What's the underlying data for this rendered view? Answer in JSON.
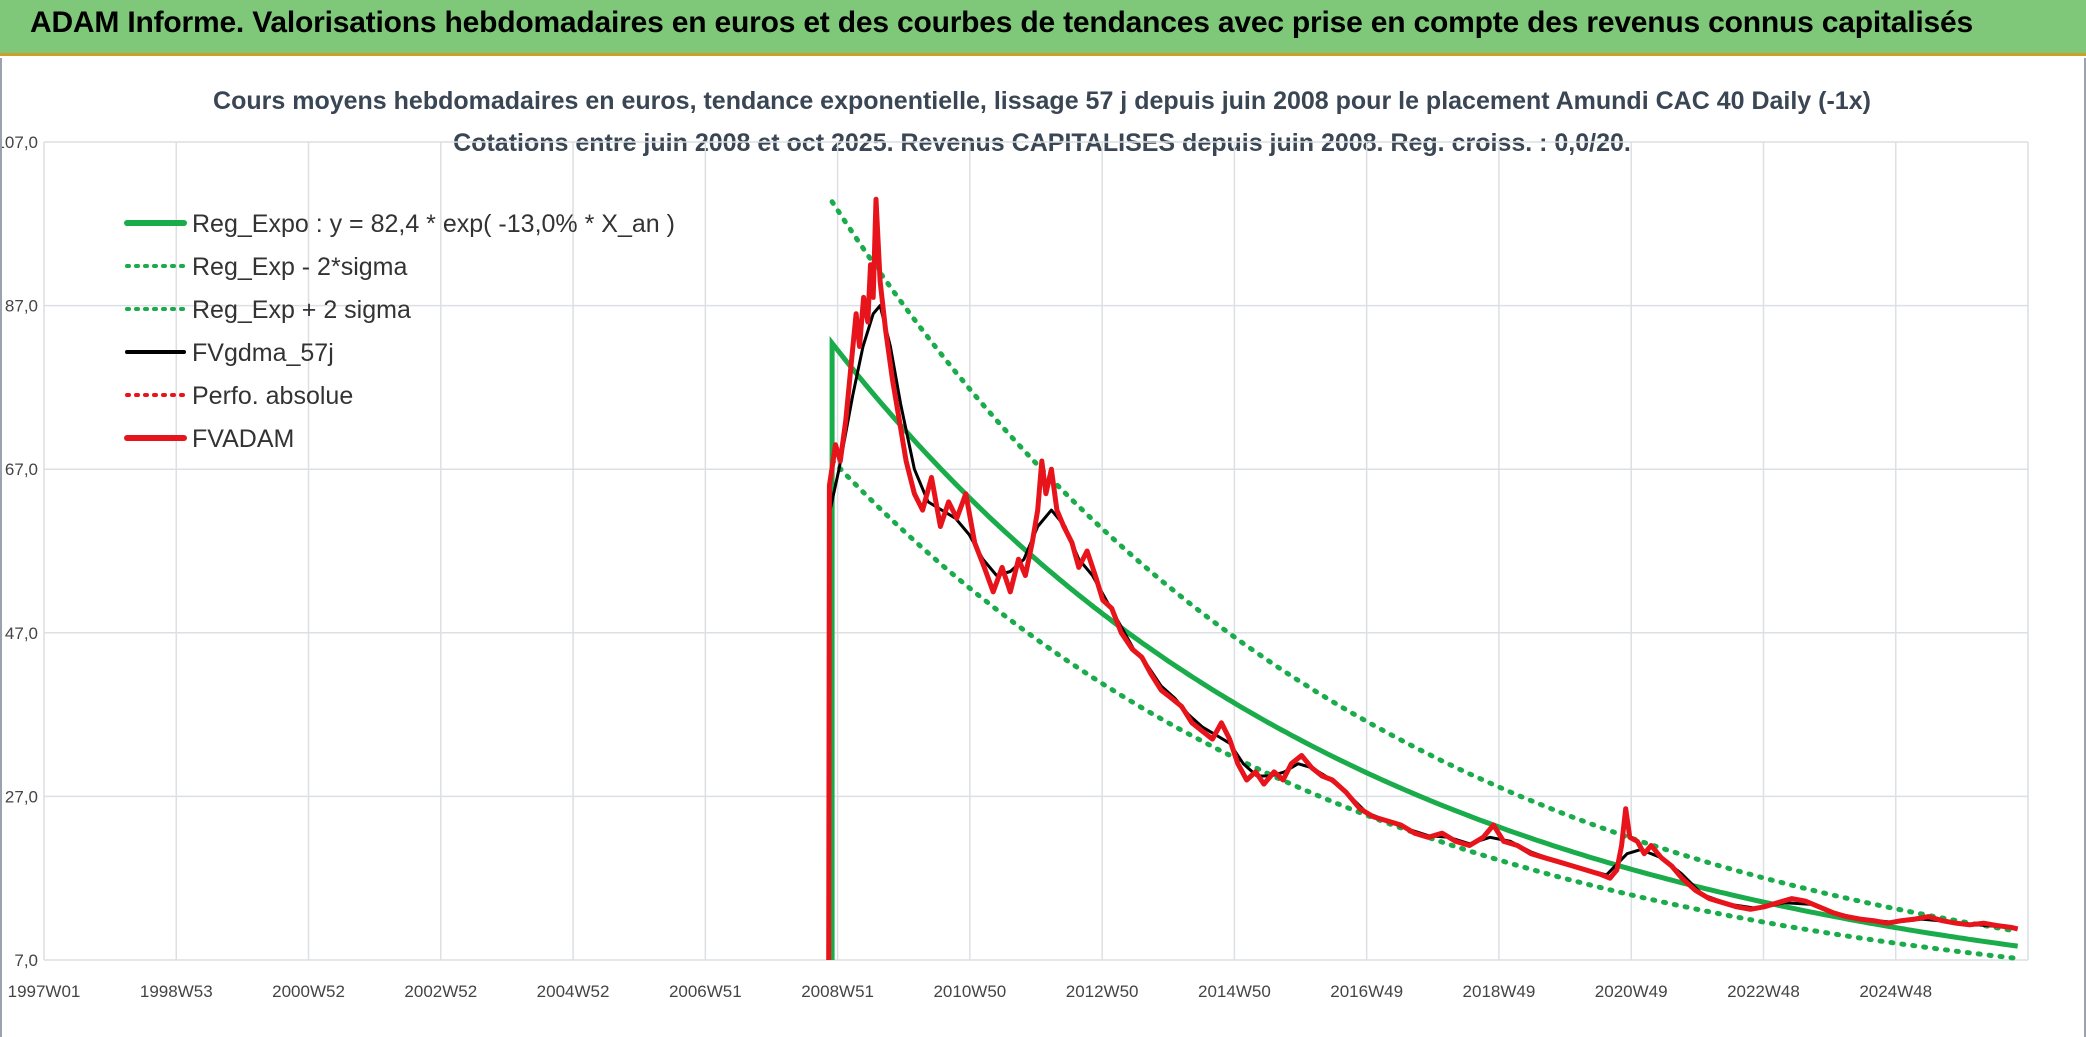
{
  "header": {
    "title": "ADAM Informe. Valorisations hebdomadaires en euros et des courbes de tendances avec prise en compte des revenus connus capitalisés"
  },
  "colors": {
    "banner": "#7fc87a",
    "reg_expo": "#1aab4b",
    "fvgdma": "#000000",
    "fvadam": "#e8141b",
    "perfo": "#e8141b",
    "grid": "#dcdfe3"
  },
  "chart_data": {
    "type": "line",
    "title": "Cours moyens hebdomadaires en euros, tendance exponentielle, lissage 57 j depuis juin 2008 pour le placement Amundi CAC 40 Daily (-1x)",
    "subtitle": "Cotations entre juin 2008 et oct 2025. Revenus CAPITALISES depuis juin 2008. Reg. croiss. : 0,0/20.",
    "xlabel": "",
    "ylabel": "",
    "x_tick_labels": [
      "1997W01",
      "1998W53",
      "2000W52",
      "2002W52",
      "2004W52",
      "2006W51",
      "2008W51",
      "2010W50",
      "2012W50",
      "2014W50",
      "2016W49",
      "2018W49",
      "2020W49",
      "2022W48",
      "2024W48"
    ],
    "y_tick_labels": [
      "7,0",
      "27,0",
      "47,0",
      "67,0",
      "87,0",
      "107,0"
    ],
    "ylim": [
      7,
      107
    ],
    "xlim": [
      1997.0,
      2025.95
    ],
    "grid": true,
    "legend_position": "top-left",
    "regression": {
      "a": 82.4,
      "rate": -0.13,
      "start": 2008.5,
      "end": 2025.8,
      "sigma_factor": 1.21
    },
    "series": [
      {
        "key": "reg_expo",
        "name": "Reg_Expo : y = 82,4 * exp( -13,0% *  X_an )",
        "style": "solid-thick"
      },
      {
        "key": "reg_minus",
        "name": "Reg_Exp - 2*sigma",
        "style": "dotted"
      },
      {
        "key": "reg_plus",
        "name": "Reg_Exp + 2 sigma",
        "style": "dotted"
      },
      {
        "key": "fvgdma",
        "name": "FVgdma_57j",
        "style": "solid"
      },
      {
        "key": "perfo",
        "name": "Perfo. absolue",
        "style": "dotted"
      },
      {
        "key": "fvadam",
        "name": "FVADAM",
        "style": "solid-thick"
      }
    ],
    "fvadam_points": [
      [
        2008.45,
        7.0
      ],
      [
        2008.46,
        65.0
      ],
      [
        2008.55,
        70.0
      ],
      [
        2008.62,
        68.0
      ],
      [
        2008.7,
        73.0
      ],
      [
        2008.78,
        80.0
      ],
      [
        2008.85,
        86.0
      ],
      [
        2008.9,
        82.0
      ],
      [
        2008.96,
        88.0
      ],
      [
        2009.02,
        85.0
      ],
      [
        2009.06,
        92.0
      ],
      [
        2009.1,
        88.0
      ],
      [
        2009.14,
        100.0
      ],
      [
        2009.2,
        90.0
      ],
      [
        2009.28,
        84.0
      ],
      [
        2009.38,
        78.0
      ],
      [
        2009.48,
        73.0
      ],
      [
        2009.58,
        68.0
      ],
      [
        2009.7,
        64.0
      ],
      [
        2009.82,
        62.0
      ],
      [
        2009.95,
        66.0
      ],
      [
        2010.08,
        60.0
      ],
      [
        2010.2,
        63.0
      ],
      [
        2010.32,
        61.0
      ],
      [
        2010.45,
        64.0
      ],
      [
        2010.58,
        58.0
      ],
      [
        2010.72,
        55.0
      ],
      [
        2010.85,
        52.0
      ],
      [
        2010.98,
        55.0
      ],
      [
        2011.1,
        52.0
      ],
      [
        2011.22,
        56.0
      ],
      [
        2011.32,
        54.0
      ],
      [
        2011.42,
        58.0
      ],
      [
        2011.5,
        62.0
      ],
      [
        2011.56,
        68.0
      ],
      [
        2011.62,
        64.0
      ],
      [
        2011.7,
        67.0
      ],
      [
        2011.78,
        62.0
      ],
      [
        2011.88,
        60.0
      ],
      [
        2012.0,
        58.0
      ],
      [
        2012.1,
        55.0
      ],
      [
        2012.22,
        57.0
      ],
      [
        2012.34,
        54.0
      ],
      [
        2012.45,
        51.0
      ],
      [
        2012.58,
        50.0
      ],
      [
        2012.72,
        47.0
      ],
      [
        2012.88,
        45.0
      ],
      [
        2013.02,
        44.0
      ],
      [
        2013.15,
        42.0
      ],
      [
        2013.3,
        40.0
      ],
      [
        2013.45,
        39.0
      ],
      [
        2013.6,
        38.0
      ],
      [
        2013.75,
        36.0
      ],
      [
        2013.9,
        35.0
      ],
      [
        2014.05,
        34.0
      ],
      [
        2014.18,
        36.0
      ],
      [
        2014.3,
        34.0
      ],
      [
        2014.42,
        31.0
      ],
      [
        2014.55,
        29.0
      ],
      [
        2014.68,
        30.0
      ],
      [
        2014.8,
        28.5
      ],
      [
        2014.95,
        30.0
      ],
      [
        2015.08,
        29.0
      ],
      [
        2015.2,
        31.0
      ],
      [
        2015.35,
        32.0
      ],
      [
        2015.5,
        30.5
      ],
      [
        2015.65,
        29.5
      ],
      [
        2015.8,
        29.0
      ],
      [
        2016.0,
        27.5
      ],
      [
        2016.2,
        25.5
      ],
      [
        2016.4,
        24.5
      ],
      [
        2016.6,
        24.0
      ],
      [
        2016.8,
        23.5
      ],
      [
        2017.0,
        22.5
      ],
      [
        2017.2,
        22.0
      ],
      [
        2017.4,
        22.5
      ],
      [
        2017.6,
        21.5
      ],
      [
        2017.8,
        21.0
      ],
      [
        2018.0,
        22.0
      ],
      [
        2018.15,
        23.5
      ],
      [
        2018.3,
        21.5
      ],
      [
        2018.5,
        21.0
      ],
      [
        2018.7,
        20.0
      ],
      [
        2018.9,
        19.5
      ],
      [
        2019.1,
        19.0
      ],
      [
        2019.3,
        18.5
      ],
      [
        2019.5,
        18.0
      ],
      [
        2019.7,
        17.5
      ],
      [
        2019.85,
        17.0
      ],
      [
        2019.95,
        18.0
      ],
      [
        2020.02,
        21.0
      ],
      [
        2020.08,
        25.5
      ],
      [
        2020.14,
        22.0
      ],
      [
        2020.25,
        21.5
      ],
      [
        2020.35,
        20.0
      ],
      [
        2020.45,
        21.0
      ],
      [
        2020.6,
        19.5
      ],
      [
        2020.75,
        18.5
      ],
      [
        2020.9,
        17.0
      ],
      [
        2021.1,
        15.5
      ],
      [
        2021.3,
        14.5
      ],
      [
        2021.5,
        14.0
      ],
      [
        2021.7,
        13.5
      ],
      [
        2021.9,
        13.2
      ],
      [
        2022.1,
        13.5
      ],
      [
        2022.3,
        14.0
      ],
      [
        2022.5,
        14.5
      ],
      [
        2022.7,
        14.2
      ],
      [
        2022.9,
        13.5
      ],
      [
        2023.1,
        12.8
      ],
      [
        2023.3,
        12.3
      ],
      [
        2023.5,
        12.0
      ],
      [
        2023.7,
        11.8
      ],
      [
        2023.9,
        11.5
      ],
      [
        2024.1,
        11.8
      ],
      [
        2024.3,
        12.0
      ],
      [
        2024.5,
        12.3
      ],
      [
        2024.7,
        11.8
      ],
      [
        2024.9,
        11.5
      ],
      [
        2025.1,
        11.3
      ],
      [
        2025.3,
        11.5
      ],
      [
        2025.5,
        11.2
      ],
      [
        2025.7,
        11.0
      ],
      [
        2025.8,
        10.8
      ]
    ],
    "fvgdma_points": [
      [
        2008.45,
        7.0
      ],
      [
        2008.47,
        62.0
      ],
      [
        2008.6,
        67.0
      ],
      [
        2008.8,
        76.0
      ],
      [
        2008.95,
        82.0
      ],
      [
        2009.1,
        86.0
      ],
      [
        2009.2,
        87.0
      ],
      [
        2009.35,
        82.0
      ],
      [
        2009.5,
        75.0
      ],
      [
        2009.7,
        67.0
      ],
      [
        2009.9,
        63.0
      ],
      [
        2010.1,
        62.0
      ],
      [
        2010.3,
        61.0
      ],
      [
        2010.5,
        59.0
      ],
      [
        2010.7,
        56.0
      ],
      [
        2010.9,
        54.0
      ],
      [
        2011.1,
        54.5
      ],
      [
        2011.3,
        56.0
      ],
      [
        2011.5,
        60.0
      ],
      [
        2011.7,
        62.0
      ],
      [
        2011.9,
        60.0
      ],
      [
        2012.1,
        56.0
      ],
      [
        2012.3,
        54.0
      ],
      [
        2012.5,
        51.0
      ],
      [
        2012.7,
        48.0
      ],
      [
        2012.9,
        45.0
      ],
      [
        2013.1,
        43.0
      ],
      [
        2013.3,
        40.5
      ],
      [
        2013.5,
        39.0
      ],
      [
        2013.7,
        37.0
      ],
      [
        2013.9,
        35.5
      ],
      [
        2014.1,
        34.5
      ],
      [
        2014.3,
        33.5
      ],
      [
        2014.5,
        31.0
      ],
      [
        2014.7,
        29.5
      ],
      [
        2014.9,
        29.5
      ],
      [
        2015.1,
        30.0
      ],
      [
        2015.3,
        31.0
      ],
      [
        2015.5,
        30.5
      ],
      [
        2015.7,
        29.5
      ],
      [
        2016.0,
        27.5
      ],
      [
        2016.3,
        25.0
      ],
      [
        2016.6,
        24.0
      ],
      [
        2016.9,
        23.0
      ],
      [
        2017.2,
        22.2
      ],
      [
        2017.5,
        22.0
      ],
      [
        2017.8,
        21.2
      ],
      [
        2018.1,
        22.0
      ],
      [
        2018.4,
        21.5
      ],
      [
        2018.7,
        20.2
      ],
      [
        2019.0,
        19.3
      ],
      [
        2019.4,
        18.3
      ],
      [
        2019.8,
        17.4
      ],
      [
        2020.1,
        20.0
      ],
      [
        2020.3,
        20.5
      ],
      [
        2020.6,
        19.5
      ],
      [
        2020.9,
        17.5
      ],
      [
        2021.2,
        15.0
      ],
      [
        2021.6,
        13.8
      ],
      [
        2022.0,
        13.3
      ],
      [
        2022.4,
        14.0
      ],
      [
        2022.8,
        13.8
      ],
      [
        2023.2,
        12.6
      ],
      [
        2023.6,
        11.9
      ],
      [
        2024.0,
        11.6
      ],
      [
        2024.4,
        12.0
      ],
      [
        2024.8,
        11.7
      ],
      [
        2025.2,
        11.3
      ],
      [
        2025.8,
        10.9
      ]
    ]
  }
}
